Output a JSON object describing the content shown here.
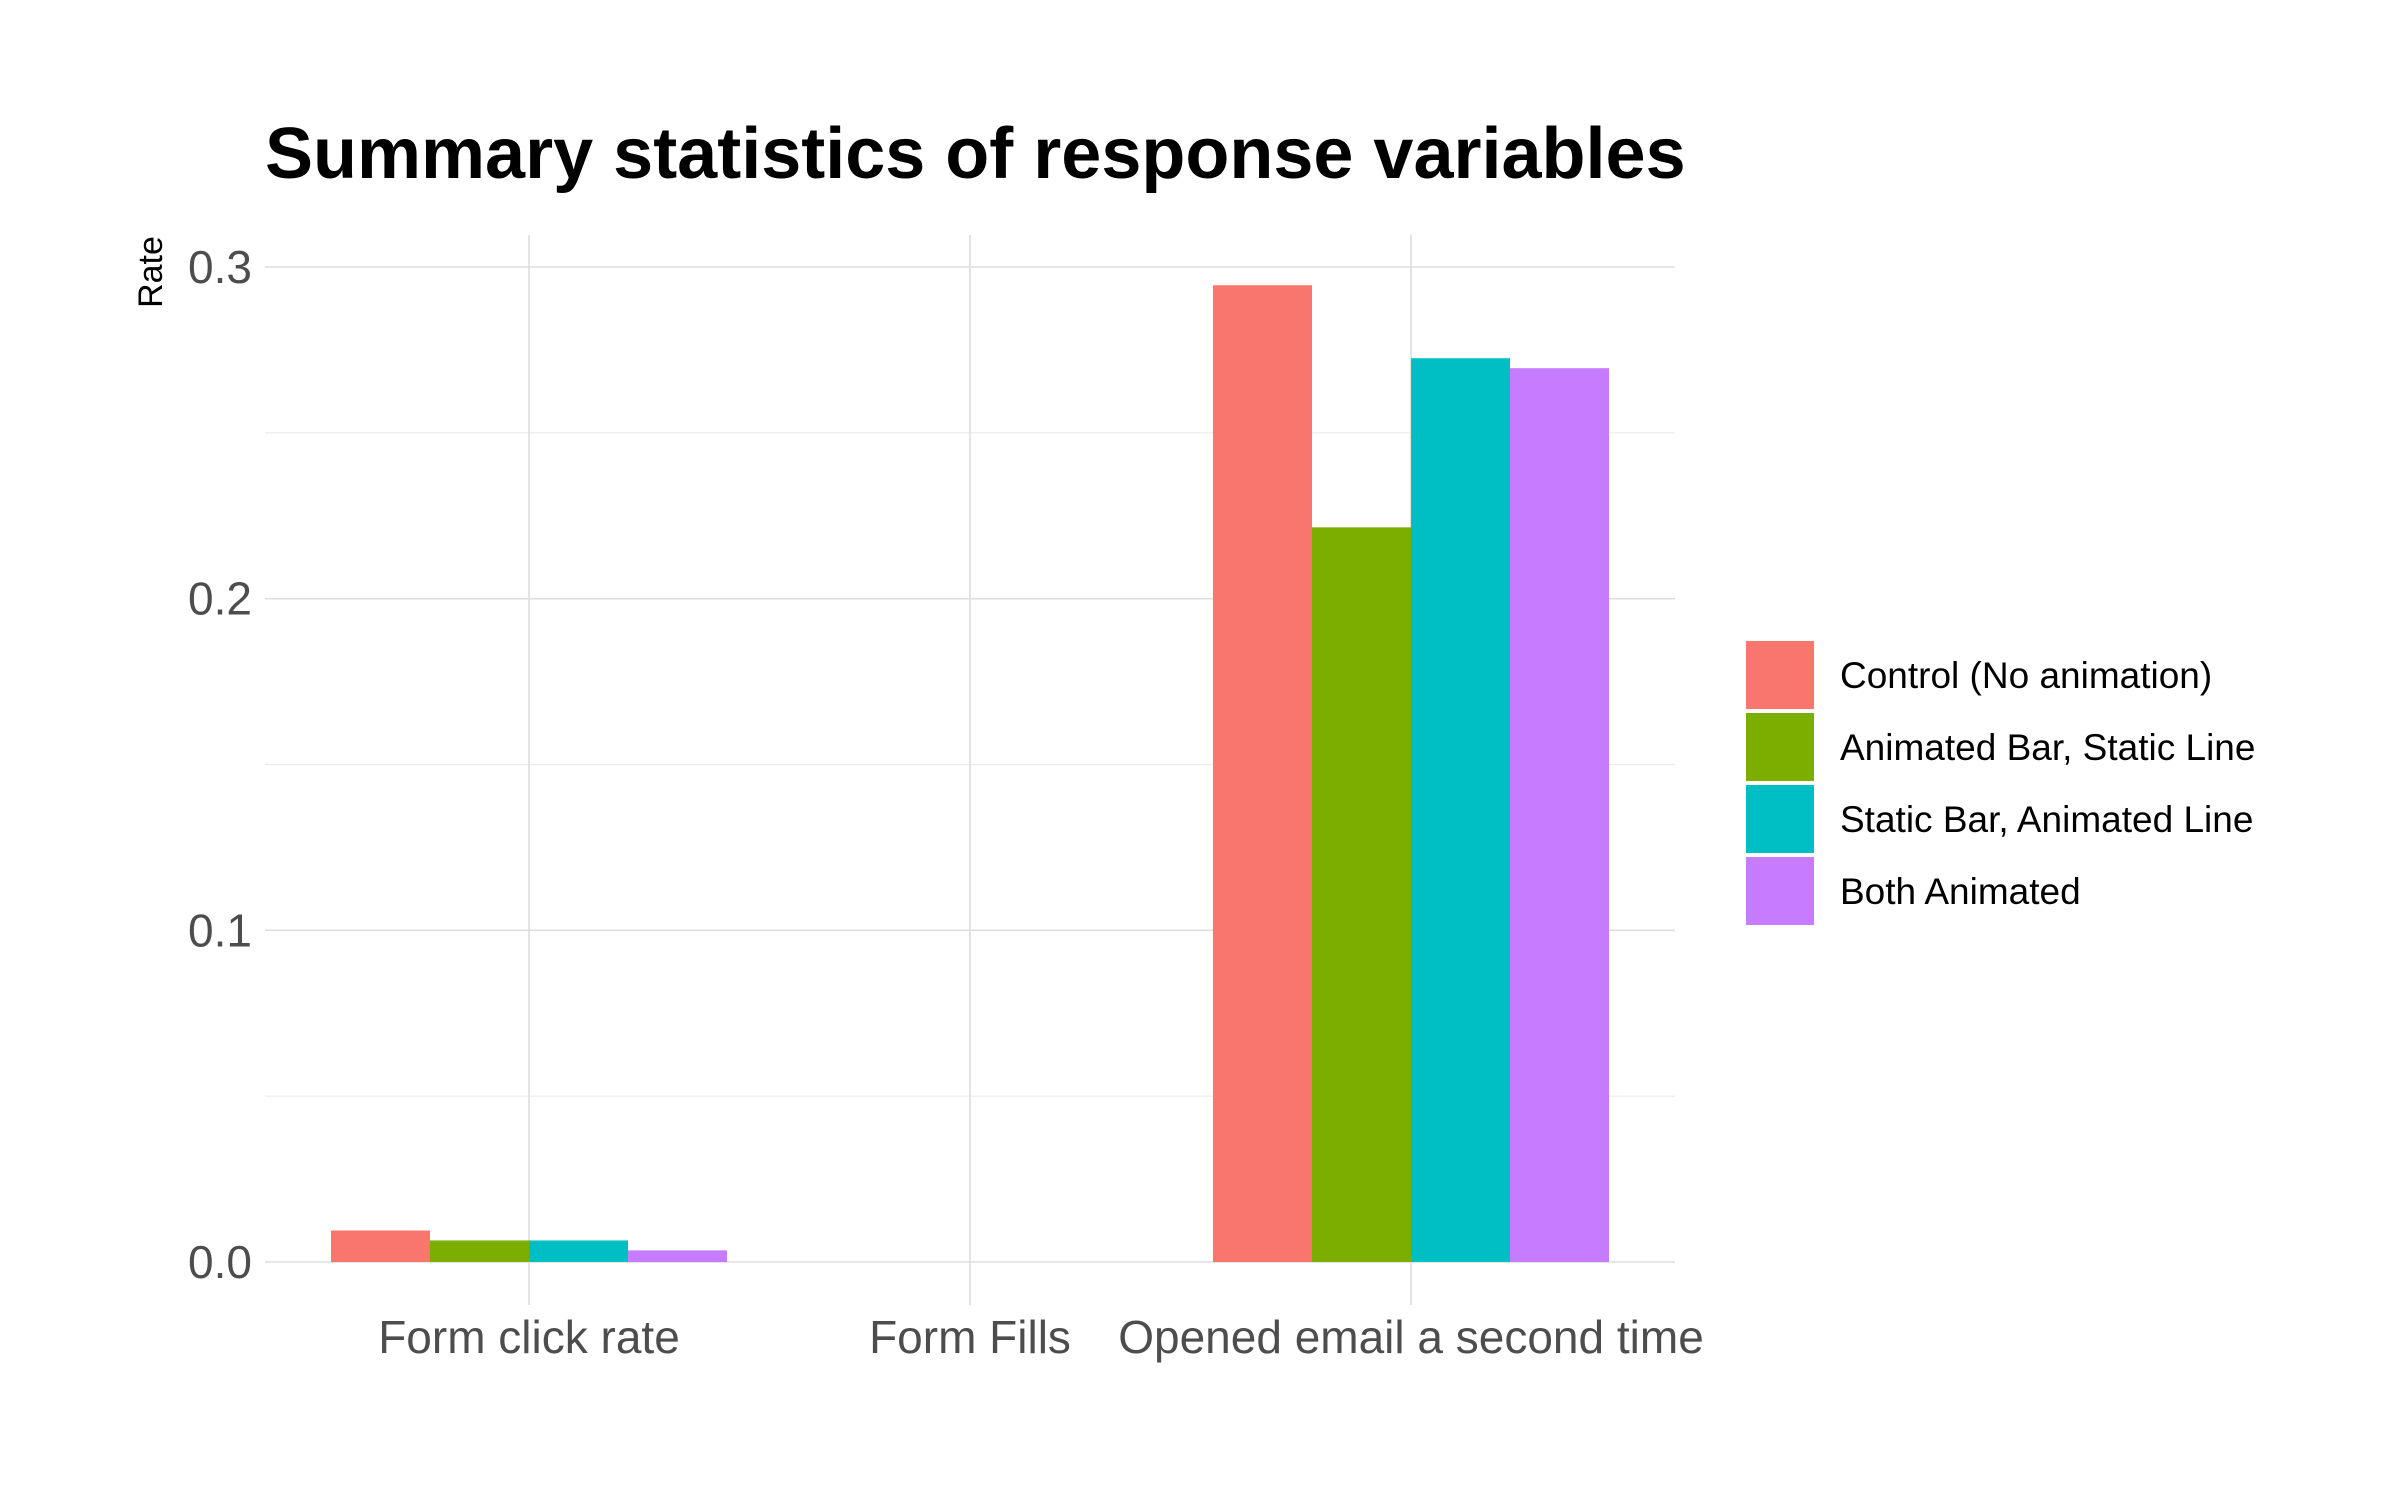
{
  "chart_data": {
    "type": "bar",
    "title": "Summary statistics of response variables",
    "xlabel": "",
    "ylabel": "Rate",
    "ylim": [
      -0.006,
      0.31
    ],
    "yticks": [
      0.0,
      0.1,
      0.2,
      0.3
    ],
    "ytick_labels": [
      "0.0",
      "0.1",
      "0.2",
      "0.3"
    ],
    "grid": true,
    "legend_position": "right",
    "categories": [
      "Form click rate",
      "Form Fills",
      "Opened email a second time"
    ],
    "series": [
      {
        "name": "Control (No animation)",
        "color": "#F8766D",
        "values": [
          0.0095,
          0.0,
          0.2945
        ]
      },
      {
        "name": "Animated Bar, Static Line",
        "color": "#7CAE00",
        "values": [
          0.0065,
          0.0,
          0.2215
        ]
      },
      {
        "name": "Static Bar, Animated Line",
        "color": "#00BFC4",
        "values": [
          0.0065,
          0.0,
          0.2725
        ]
      },
      {
        "name": "Both Animated",
        "color": "#C77CFF",
        "values": [
          0.0035,
          0.0,
          0.2695
        ]
      }
    ]
  }
}
